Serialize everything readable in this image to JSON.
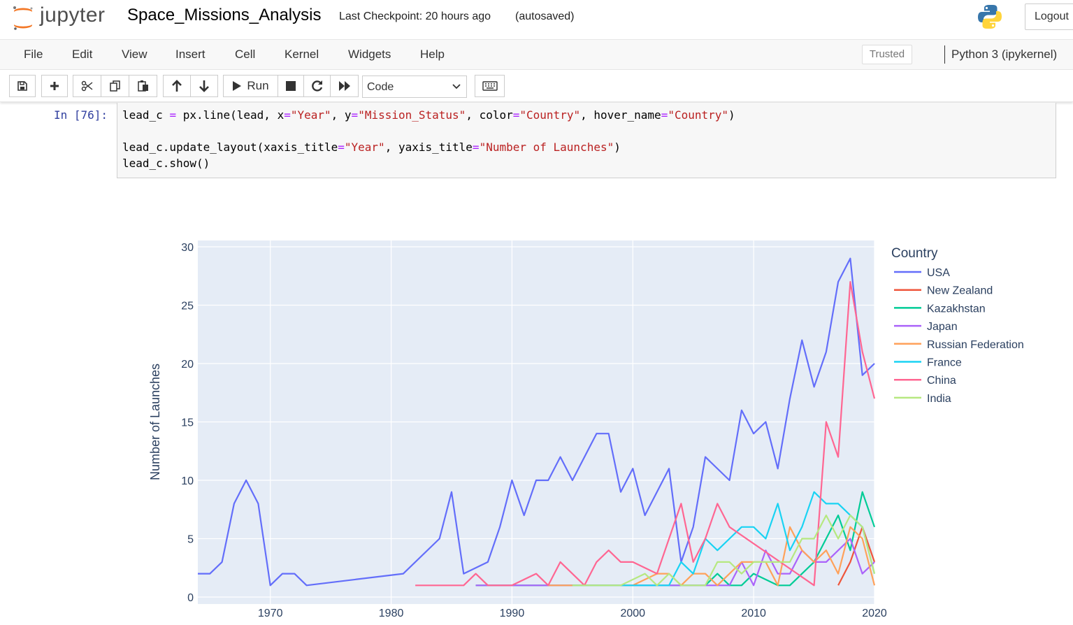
{
  "header": {
    "logo_text": "jupyter",
    "notebook_title": "Space_Missions_Analysis",
    "checkpoint": "Last Checkpoint: 20 hours ago",
    "autosave": "(autosaved)",
    "logout": "Logout"
  },
  "menubar": {
    "items": [
      "File",
      "Edit",
      "View",
      "Insert",
      "Cell",
      "Kernel",
      "Widgets",
      "Help"
    ],
    "trusted": "Trusted",
    "kernel": "Python 3 (ipykernel)"
  },
  "toolbar": {
    "run_label": "Run",
    "cell_type": "Code",
    "icons": [
      "save-icon",
      "plus-icon",
      "scissors-icon",
      "copy-icon",
      "paste-icon",
      "arrow-up-icon",
      "arrow-down-icon",
      "play-icon",
      "stop-icon",
      "restart-icon",
      "fast-forward-icon",
      "keyboard-icon"
    ]
  },
  "cell": {
    "prompt": "In [76]:",
    "lines": [
      "lead_c = px.line(lead, x=\"Year\", y=\"Mission_Status\", color=\"Country\", hover_name=\"Country\")",
      "",
      "lead_c.update_layout(xaxis_title=\"Year\", yaxis_title=\"Number of Launches\")",
      "lead_c.show()"
    ]
  },
  "chart_data": {
    "type": "line",
    "title": "",
    "xlabel": "",
    "ylabel": "Number of Launches",
    "xlim": [
      1964,
      2020
    ],
    "ylim": [
      0,
      30
    ],
    "x_ticks": [
      "1970",
      "1980",
      "1990",
      "2000",
      "2010",
      "2020"
    ],
    "y_ticks": [
      "0",
      "5",
      "10",
      "15",
      "20",
      "25",
      "30"
    ],
    "legend_title": "Country",
    "legend_position": "right",
    "grid": true,
    "colors": {
      "plot_bg": "#e5ecf6",
      "grid": "#ffffff"
    },
    "series": [
      {
        "name": "USA",
        "color": "#636efa",
        "x": [
          1964,
          1965,
          1966,
          1967,
          1968,
          1969,
          1970,
          1971,
          1972,
          1973,
          1981,
          1984,
          1985,
          1986,
          1988,
          1989,
          1990,
          1991,
          1992,
          1993,
          1994,
          1995,
          1997,
          1998,
          1999,
          2000,
          2001,
          2003,
          2004,
          2005,
          2006,
          2008,
          2009,
          2010,
          2011,
          2012,
          2013,
          2014,
          2015,
          2016,
          2017,
          2018,
          2019,
          2020
        ],
        "y": [
          2,
          2,
          3,
          8,
          10,
          8,
          1,
          2,
          2,
          1,
          2,
          5,
          9,
          2,
          3,
          6,
          10,
          7,
          10,
          10,
          12,
          10,
          14,
          14,
          9,
          11,
          7,
          11,
          3,
          6,
          12,
          10,
          16,
          14,
          15,
          11,
          17,
          22,
          18,
          21,
          27,
          29,
          19,
          20
        ]
      },
      {
        "name": "New Zealand",
        "color": "#ef553b",
        "x": [
          2017,
          2018,
          2019,
          2020
        ],
        "y": [
          1,
          3,
          6,
          3
        ]
      },
      {
        "name": "Kazakhstan",
        "color": "#00cc96",
        "x": [
          1987,
          1995,
          2000,
          2005,
          2006,
          2007,
          2008,
          2009,
          2010,
          2012,
          2013,
          2014,
          2015,
          2016,
          2017,
          2018,
          2019,
          2020
        ],
        "y": [
          1,
          1,
          1,
          1,
          1,
          2,
          1,
          1,
          2,
          1,
          1,
          2,
          3,
          5,
          7,
          4,
          9,
          6
        ]
      },
      {
        "name": "Japan",
        "color": "#ab63fa",
        "x": [
          1987,
          1995,
          2000,
          2004,
          2005,
          2006,
          2007,
          2008,
          2009,
          2010,
          2011,
          2012,
          2013,
          2014,
          2015,
          2016,
          2017,
          2018,
          2019,
          2020
        ],
        "y": [
          1,
          1,
          1,
          1,
          1,
          1,
          1,
          1,
          3,
          1,
          4,
          2,
          2,
          4,
          3,
          3,
          4,
          5,
          2,
          3
        ]
      },
      {
        "name": "Russian Federation",
        "color": "#ffa15a",
        "x": [
          1993,
          1995,
          2000,
          2002,
          2003,
          2004,
          2005,
          2006,
          2007,
          2008,
          2009,
          2010,
          2011,
          2012,
          2013,
          2014,
          2015,
          2016,
          2017,
          2018,
          2019,
          2020
        ],
        "y": [
          1,
          1,
          1,
          2,
          2,
          1,
          2,
          2,
          1,
          2,
          3,
          3,
          3,
          1,
          6,
          4,
          3,
          4,
          2,
          6,
          5,
          1
        ]
      },
      {
        "name": "France",
        "color": "#19d3f3",
        "x": [
          1995,
          2000,
          2003,
          2004,
          2005,
          2006,
          2007,
          2008,
          2009,
          2010,
          2011,
          2012,
          2013,
          2014,
          2015,
          2016,
          2017,
          2018,
          2019,
          2020
        ],
        "y": [
          1,
          1,
          1,
          3,
          2,
          5,
          4,
          5,
          6,
          6,
          5,
          8,
          4,
          6,
          9,
          8,
          8,
          7,
          6,
          2
        ]
      },
      {
        "name": "China",
        "color": "#ff6692",
        "x": [
          1982,
          1986,
          1987,
          1988,
          1990,
          1992,
          1993,
          1994,
          1996,
          1997,
          1998,
          1999,
          2000,
          2002,
          2003,
          2004,
          2005,
          2006,
          2007,
          2008,
          2015,
          2016,
          2017,
          2018,
          2019,
          2020
        ],
        "y": [
          1,
          1,
          2,
          1,
          1,
          2,
          1,
          3,
          1,
          3,
          4,
          3,
          3,
          2,
          5,
          8,
          3,
          5,
          8,
          6,
          1,
          15,
          12,
          27,
          21,
          17
        ]
      },
      {
        "name": "India",
        "color": "#b6e880",
        "x": [
          1995,
          1999,
          2001,
          2002,
          2003,
          2004,
          2005,
          2006,
          2007,
          2008,
          2009,
          2010,
          2011,
          2012,
          2013,
          2014,
          2015,
          2016,
          2017,
          2018,
          2019,
          2020
        ],
        "y": [
          1,
          1,
          2,
          1,
          2,
          1,
          1,
          1,
          3,
          3,
          2,
          3,
          3,
          3,
          3,
          5,
          5,
          7,
          5,
          7,
          6,
          2
        ]
      }
    ]
  }
}
